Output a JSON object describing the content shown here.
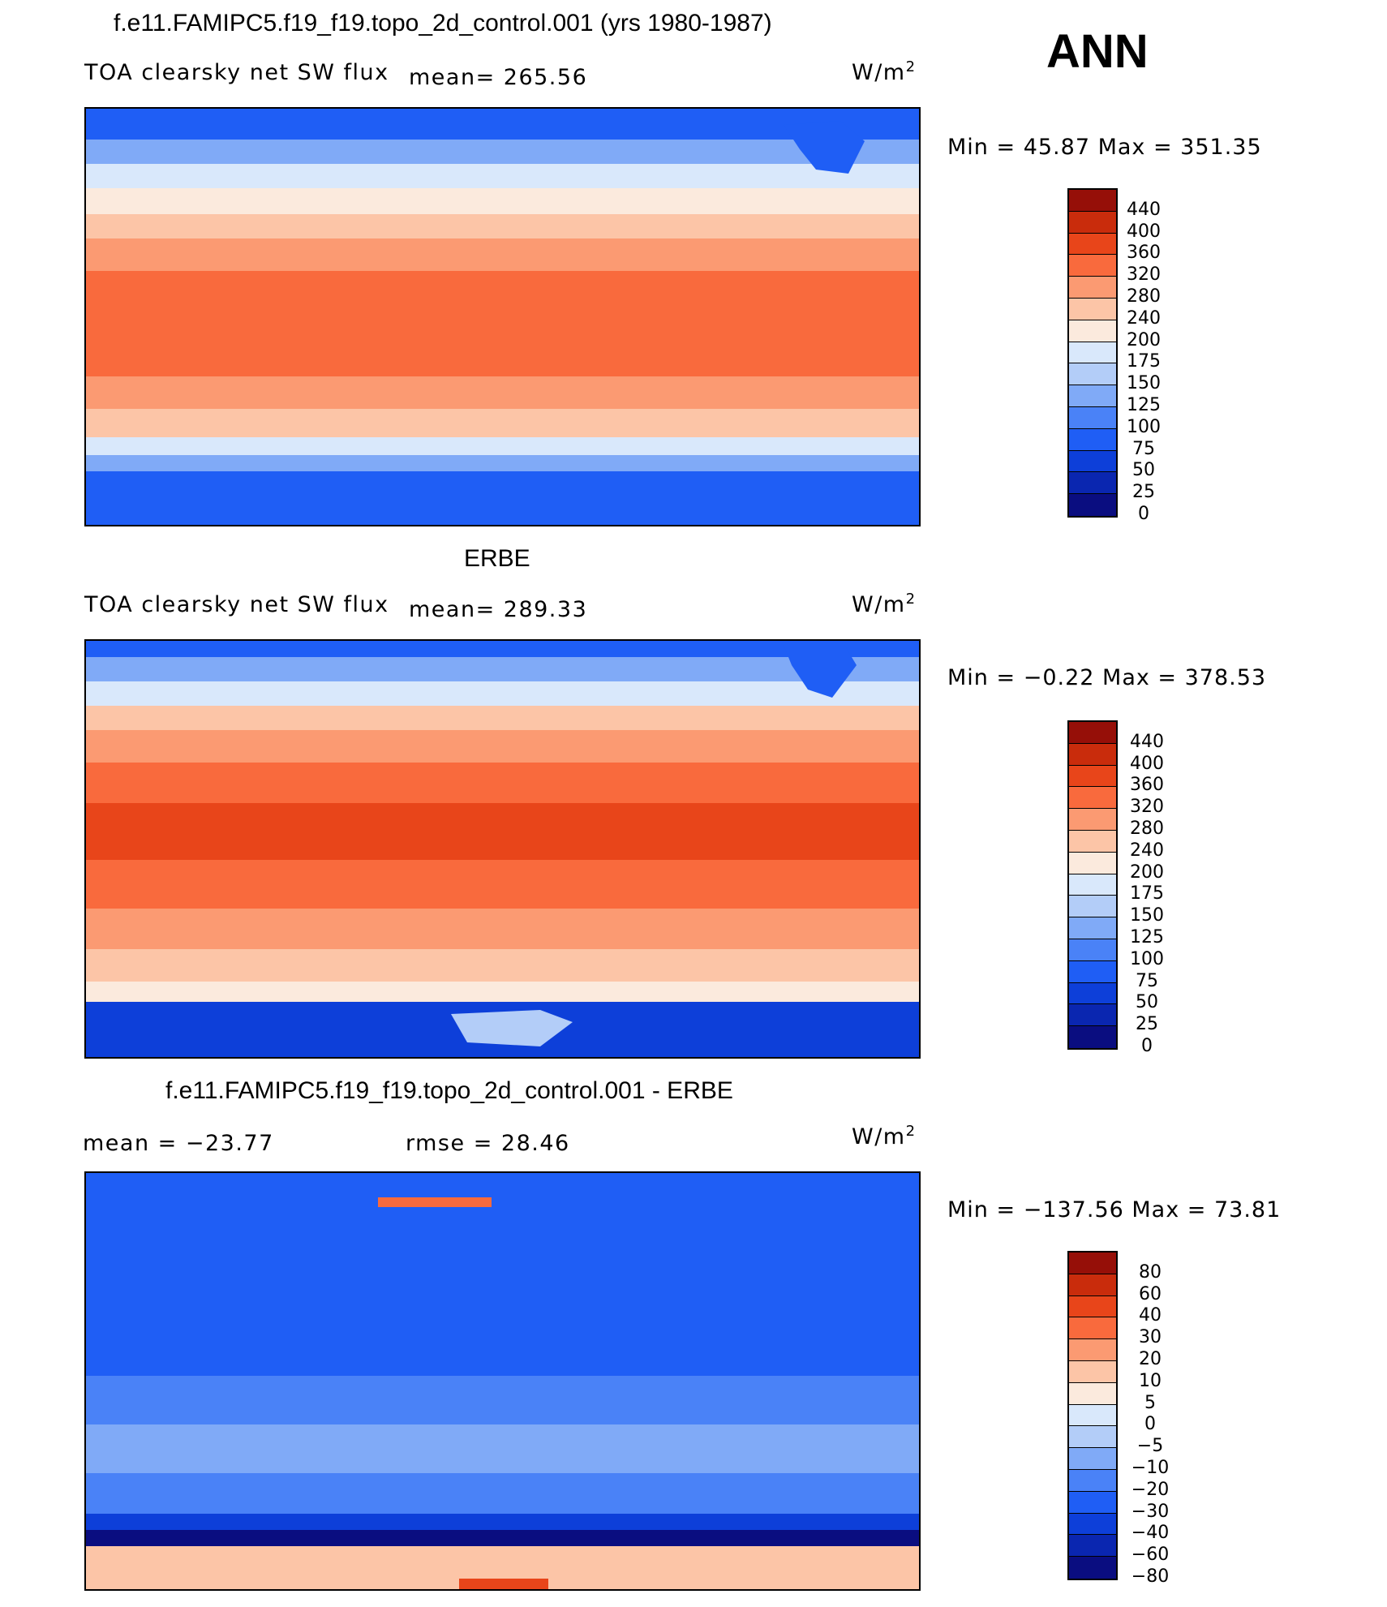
{
  "season": "ANN",
  "colors": {
    "abs": [
      "#0a0d80",
      "#0a26b0",
      "#0d3fd9",
      "#1f5ef5",
      "#4a82f7",
      "#80aaf7",
      "#b3cdf8",
      "#d9e8fb",
      "#fbeadd",
      "#fcc5a7",
      "#fb9a72",
      "#f96a3d",
      "#e8451a",
      "#c92c0c",
      "#960f08"
    ],
    "diff": [
      "#0a0d80",
      "#0a26b0",
      "#0d3fd9",
      "#1f5ef5",
      "#4a82f7",
      "#80aaf7",
      "#b3cdf8",
      "#d9e8fb",
      "#fbeadd",
      "#fcc5a7",
      "#fb9a72",
      "#f96a3d",
      "#e8451a",
      "#c92c0c",
      "#960f08"
    ]
  },
  "panels": [
    {
      "title": "f.e11.FAMIPC5.f19_f19.topo_2d_control.001 (yrs 1980-1987)",
      "left_label": "TOA clearsky net SW flux",
      "mean_label": "mean=  265.56",
      "units_base": "W/m",
      "units_exp": "2",
      "minmax": "Min =   45.87 Max =  351.35",
      "ticks": [
        "440",
        "400",
        "360",
        "320",
        "280",
        "240",
        "200",
        "175",
        "150",
        "125",
        "100",
        "75",
        "50",
        "25",
        "0"
      ]
    },
    {
      "title": "ERBE",
      "left_label": "TOA clearsky net SW flux",
      "mean_label": "mean=  289.33",
      "units_base": "W/m",
      "units_exp": "2",
      "minmax": "Min =   −0.22 Max =  378.53",
      "ticks": [
        "440",
        "400",
        "360",
        "320",
        "280",
        "240",
        "200",
        "175",
        "150",
        "125",
        "100",
        "75",
        "50",
        "25",
        "0"
      ]
    },
    {
      "title": "f.e11.FAMIPC5.f19_f19.topo_2d_control.001 - ERBE",
      "left_label": "mean = −23.77",
      "mean_label": "rmse =   28.46",
      "units_base": "W/m",
      "units_exp": "2",
      "minmax": "Min = −137.56 Max =   73.81",
      "ticks": [
        "80",
        "60",
        "40",
        "30",
        "20",
        "10",
        "5",
        "0",
        "−5",
        "−10",
        "−20",
        "−30",
        "−40",
        "−60",
        "−80"
      ]
    }
  ]
}
